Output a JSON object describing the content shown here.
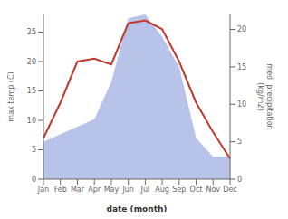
{
  "chart_data": {
    "type": "line",
    "categories": [
      "Jan",
      "Feb",
      "Mar",
      "Apr",
      "May",
      "Jun",
      "Jul",
      "Aug",
      "Sep",
      "Oct",
      "Nov",
      "Dec"
    ],
    "series": [
      {
        "type": "line",
        "color": "#c0392b",
        "values": [
          7,
          13,
          20,
          20.5,
          19.5,
          26.5,
          27,
          25.5,
          20,
          13,
          8,
          3.5
        ]
      },
      {
        "type": "area",
        "color": "#b0bce8",
        "axis": "y2",
        "values": [
          5,
          6,
          7,
          8,
          13,
          21.5,
          22,
          19,
          15,
          5.5,
          3,
          3
        ]
      }
    ],
    "xlabel": "date (month)",
    "ylabel": "max temp (C)",
    "y2label": "med. precipitation\n(kg/m2)",
    "ylim": [
      0,
      28
    ],
    "yticks": [
      0,
      5,
      10,
      15,
      20,
      25
    ],
    "y2lim": [
      0,
      22
    ],
    "y2ticks": [
      0,
      5,
      10,
      15,
      20
    ]
  }
}
